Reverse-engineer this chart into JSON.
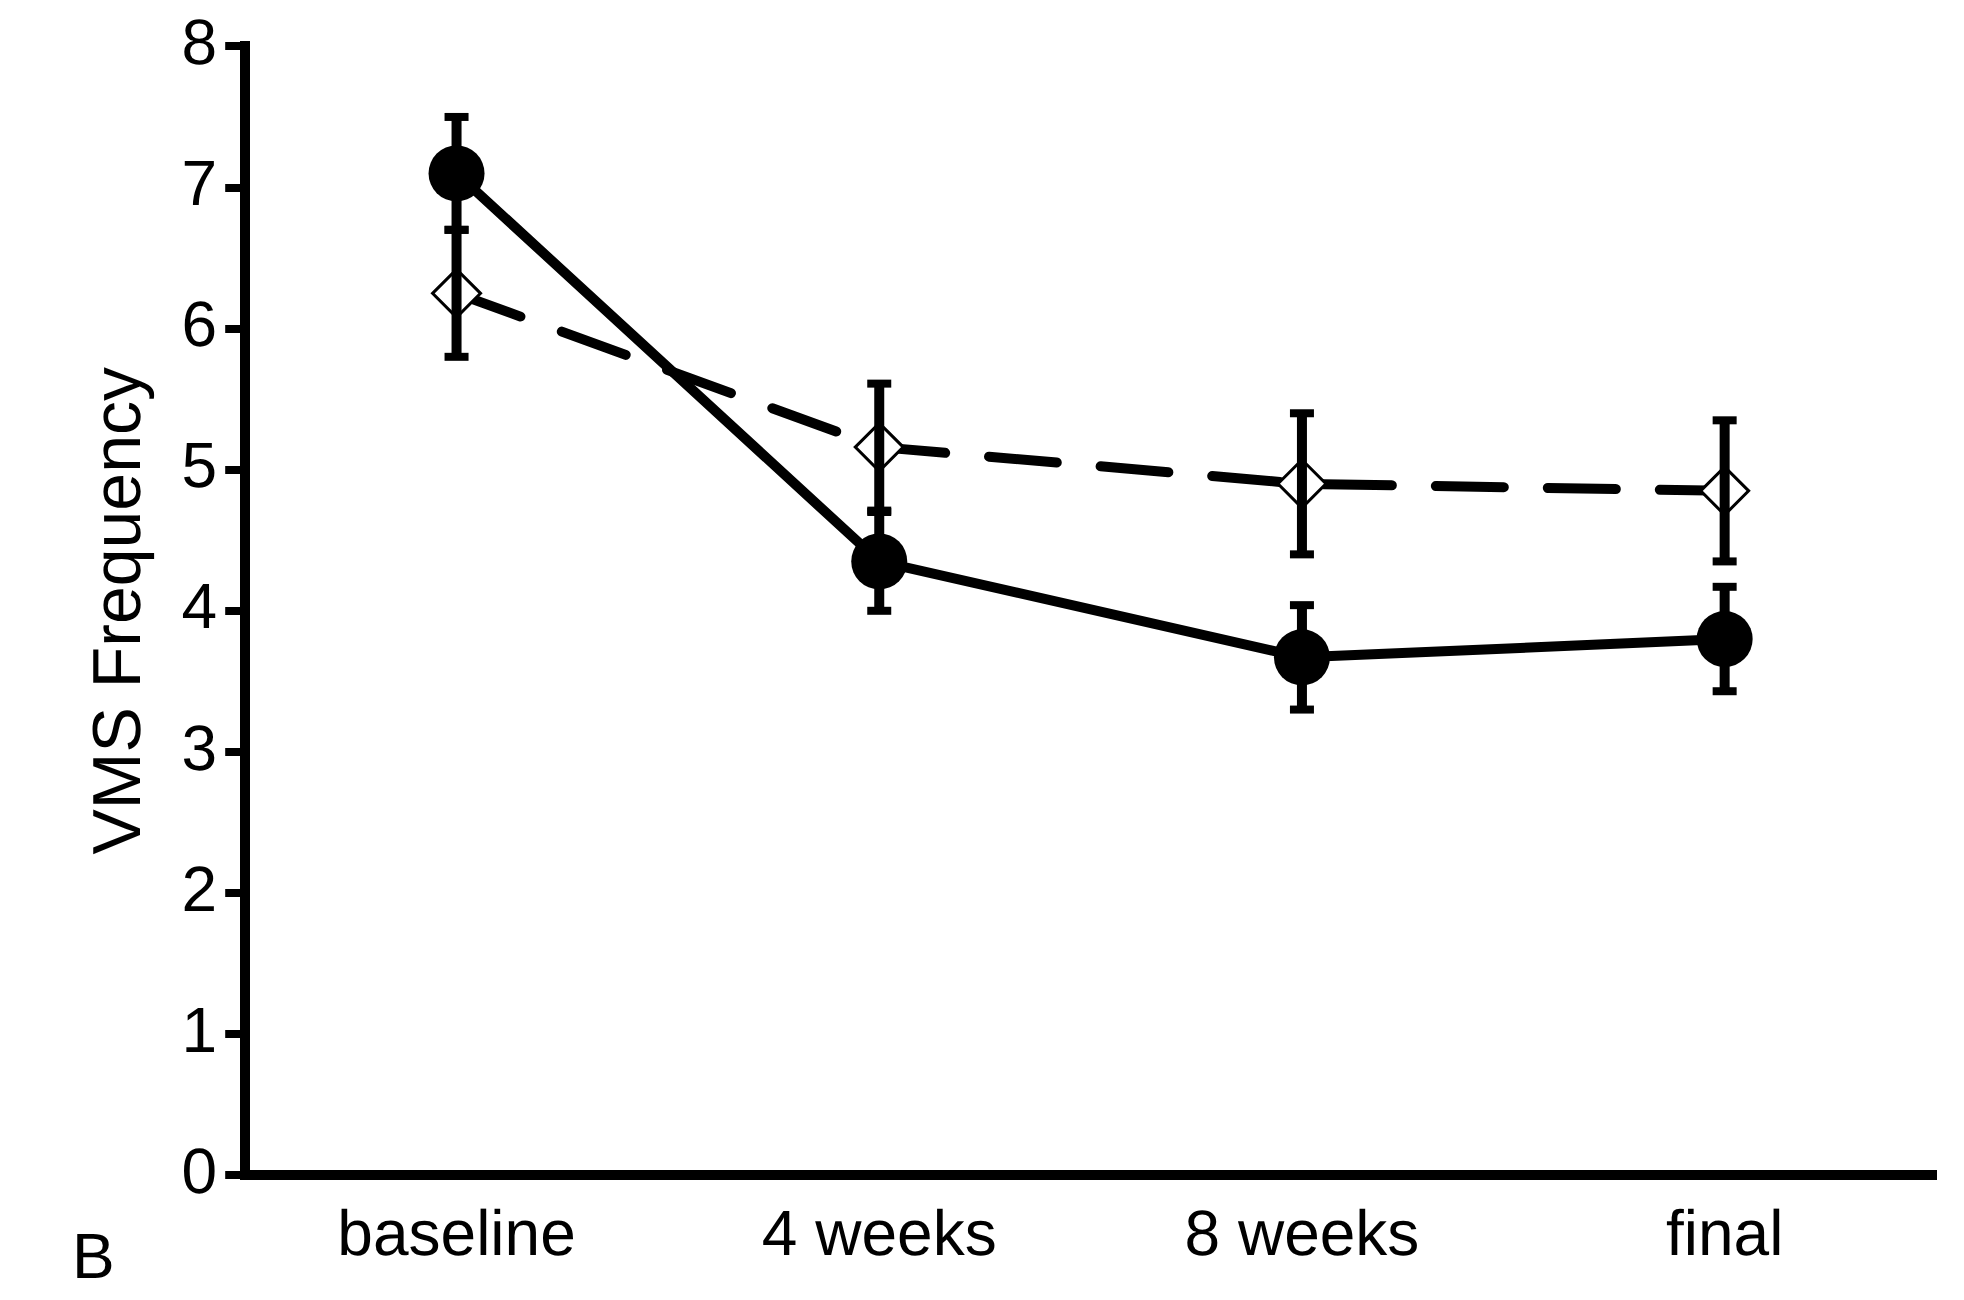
{
  "chart_data": {
    "type": "line",
    "ylabel": "VMS Frequency",
    "categories": [
      "baseline",
      "4 weeks",
      "8 weeks",
      "final"
    ],
    "ylim": [
      0,
      8
    ],
    "yticks": [
      0,
      1,
      2,
      3,
      4,
      5,
      6,
      7,
      8
    ],
    "grid": false,
    "legend": false,
    "annotations": [
      "B"
    ],
    "series": [
      {
        "color": "#000000",
        "marker": "circle",
        "line_style": "solid",
        "values": [
          7.1,
          4.35,
          3.67,
          3.8
        ],
        "errors": [
          0.4,
          0.35,
          0.37,
          0.37
        ]
      },
      {
        "color": "#000000",
        "marker": "diamond",
        "line_style": "dashed",
        "values": [
          6.25,
          5.16,
          4.9,
          4.85
        ],
        "errors": [
          0.45,
          0.45,
          0.5,
          0.5
        ]
      }
    ]
  }
}
